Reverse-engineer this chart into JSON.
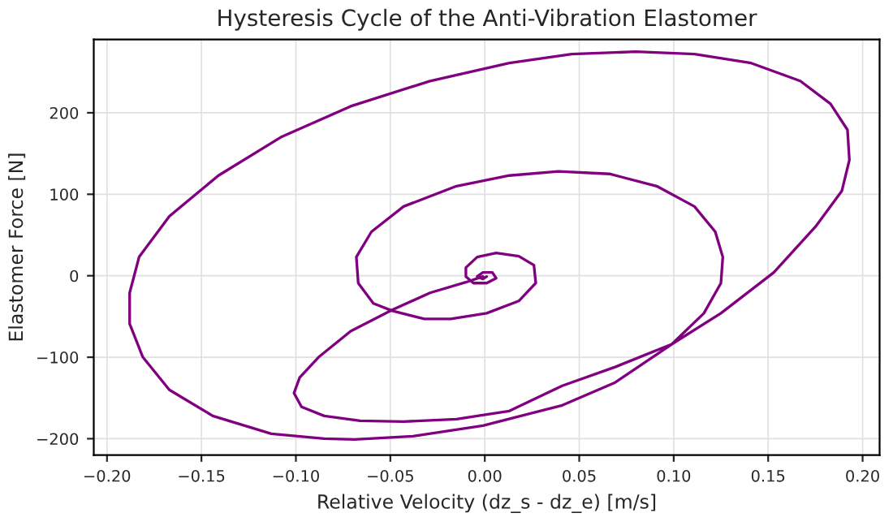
{
  "chart_data": {
    "type": "line",
    "title": "Hysteresis Cycle of the Anti-Vibration Elastomer",
    "xlabel": "Relative Velocity (dz_s - dz_e) [m/s]",
    "ylabel": "Elastomer Force [N]",
    "xlim": [
      -0.207,
      0.209
    ],
    "ylim": [
      -220,
      290
    ],
    "xticks": [
      {
        "value": -0.2,
        "label": "−0.20"
      },
      {
        "value": -0.15,
        "label": "−0.15"
      },
      {
        "value": -0.1,
        "label": "−0.10"
      },
      {
        "value": -0.05,
        "label": "−0.05"
      },
      {
        "value": 0,
        "label": "0.00"
      },
      {
        "value": 0.05,
        "label": "0.05"
      },
      {
        "value": 0.1,
        "label": "0.10"
      },
      {
        "value": 0.15,
        "label": "0.15"
      },
      {
        "value": 0.2,
        "label": "0.20"
      }
    ],
    "yticks": [
      {
        "value": -200,
        "label": "−200"
      },
      {
        "value": -100,
        "label": "−100"
      },
      0,
      100,
      200
    ],
    "grid": true,
    "legend": false,
    "marker": "none",
    "line_style": "solid",
    "series": [
      {
        "color": "#800080",
        "x": [
          -0.001,
          -0.01,
          -0.029,
          -0.049,
          -0.071,
          -0.088,
          -0.098,
          -0.101,
          -0.097,
          -0.085,
          -0.066,
          -0.043,
          -0.015,
          0.013,
          0.041,
          0.069,
          0.099,
          0.125,
          0.153,
          0.175,
          0.189,
          0.193,
          0.192,
          0.183,
          0.167,
          0.141,
          0.111,
          0.08,
          0.046,
          0.013,
          -0.029,
          -0.071,
          -0.108,
          -0.141,
          -0.167,
          -0.183,
          -0.188,
          -0.188,
          -0.181,
          -0.167,
          -0.144,
          -0.113,
          -0.085,
          -0.069,
          -0.038,
          -0.001,
          0.041,
          0.069,
          0.099,
          0.116,
          0.125,
          0.126,
          0.122,
          0.111,
          0.091,
          0.066,
          0.039,
          0.013,
          -0.015,
          -0.043,
          -0.06,
          -0.068,
          -0.067,
          -0.059,
          -0.049,
          -0.032,
          -0.018,
          0.001,
          0.018,
          0.027,
          0.026,
          0.018,
          0.006,
          -0.004,
          -0.01,
          -0.01,
          -0.006,
          0.001,
          0.006,
          0.004,
          -0.001,
          -0.004,
          -0.001,
          0.001
        ],
        "values": [
          -1,
          -8,
          -21,
          -42,
          -68,
          -100,
          -125,
          -144,
          -161,
          -172,
          -178,
          -179,
          -176,
          -166,
          -135,
          -112,
          -84,
          -46,
          4,
          60,
          104,
          142,
          179,
          211,
          239,
          261,
          272,
          275,
          272,
          261,
          239,
          208,
          170,
          123,
          73,
          23,
          -21,
          -59,
          -100,
          -140,
          -172,
          -194,
          -200,
          -201,
          -197,
          -184,
          -159,
          -131,
          -84,
          -46,
          -9,
          23,
          54,
          85,
          110,
          125,
          128,
          123,
          110,
          85,
          54,
          23,
          -9,
          -34,
          -43,
          -53,
          -53,
          -46,
          -31,
          -9,
          13,
          24,
          28,
          23,
          10,
          -1,
          -9,
          -9,
          -3,
          4,
          4,
          -1,
          -4,
          -1
        ]
      }
    ]
  }
}
